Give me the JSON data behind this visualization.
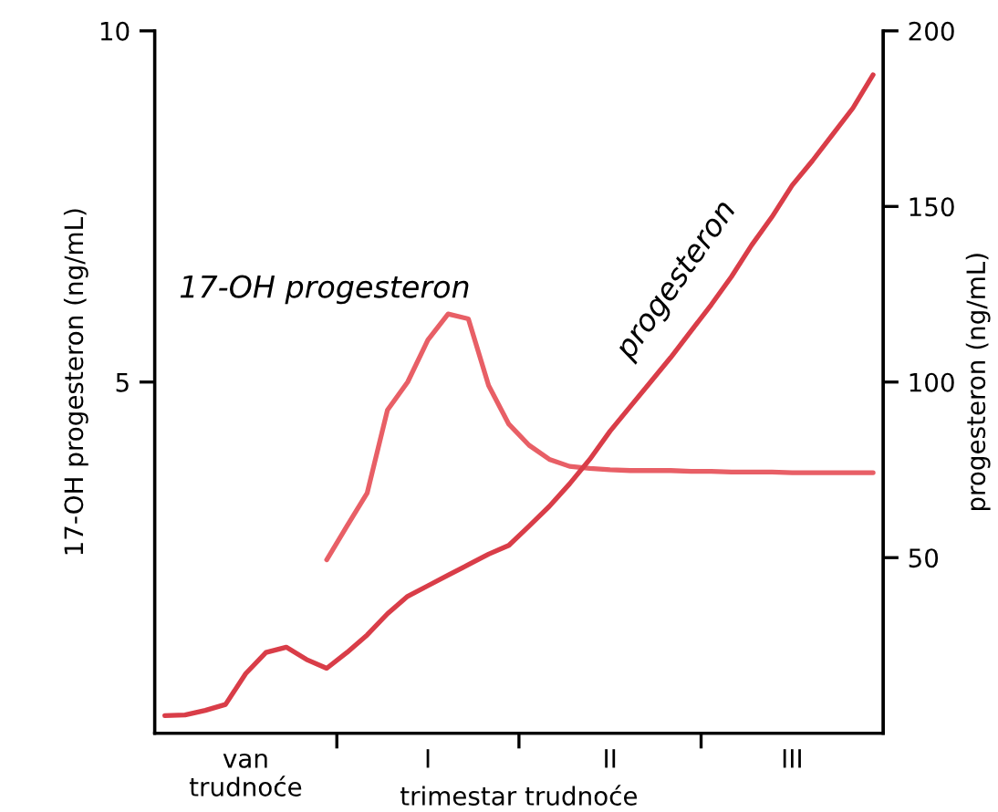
{
  "chart_data": {
    "type": "line",
    "xlabel": "trimestar trudnoće",
    "ylabel": "17-OH progesteron (ng/mL)",
    "y2label": "progesteron (ng/mL)",
    "categories": [
      null,
      null,
      null,
      null,
      "van\ntrudnoće",
      null,
      null,
      null,
      null,
      null,
      null,
      null,
      null,
      "I",
      null,
      null,
      null,
      null,
      null,
      null,
      null,
      null,
      "II",
      null,
      null,
      null,
      null,
      null,
      null,
      null,
      null,
      "III",
      null,
      null,
      null,
      null
    ],
    "ylim": [
      0,
      10
    ],
    "yticks": [
      5,
      10
    ],
    "y2lim": [
      0,
      200
    ],
    "y2ticks": [
      50,
      100,
      150,
      200
    ],
    "grid": false,
    "legend": false,
    "marker": "none",
    "line_style": "solid",
    "series": [
      {
        "name": "17-OH progesteron",
        "color": "#e85f66",
        "values": [
          null,
          null,
          null,
          null,
          null,
          null,
          null,
          null,
          2.47,
          2.95,
          3.42,
          4.6,
          5.0,
          5.6,
          5.97,
          5.9,
          4.95,
          4.4,
          4.1,
          3.9,
          3.8,
          3.77,
          3.75,
          3.74,
          3.74,
          3.74,
          3.73,
          3.73,
          3.72,
          3.72,
          3.72,
          3.71,
          3.71,
          3.71,
          3.71,
          3.71
        ]
      },
      {
        "name": "progesteron",
        "color": "#d93d48",
        "axis": "y2",
        "values": [
          5,
          5.2,
          6.5,
          8.2,
          17,
          23,
          24.5,
          21,
          18.5,
          23,
          28,
          34,
          39,
          42,
          45,
          48,
          51,
          53.5,
          59,
          64.6,
          71,
          78,
          86,
          93,
          100,
          107,
          114.5,
          122,
          130,
          139,
          147,
          156,
          163,
          170.5,
          178,
          187.5
        ]
      }
    ]
  }
}
